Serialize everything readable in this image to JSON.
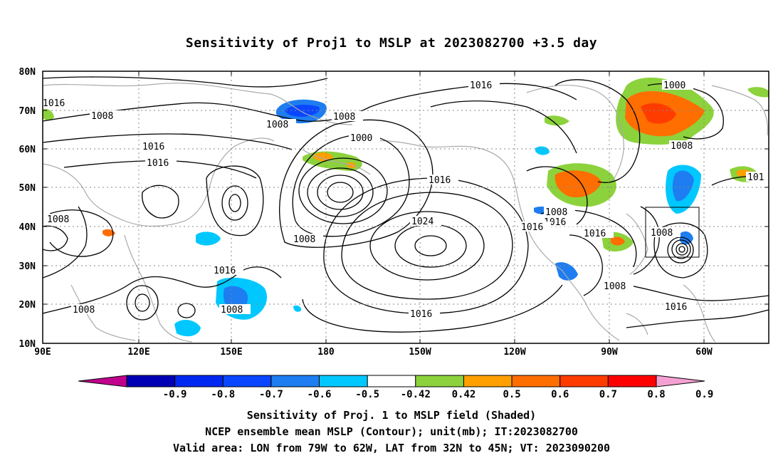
{
  "title": "Sensitivity of Proj1 to MSLP at 2023082700 +3.5 day",
  "lat_labels": [
    "80N",
    "70N",
    "60N",
    "50N",
    "40N",
    "30N",
    "20N",
    "10N"
  ],
  "lon_labels": [
    "90E",
    "120E",
    "150E",
    "180",
    "150W",
    "120W",
    "90W",
    "60W"
  ],
  "contour_labels": [
    "1016",
    "1008",
    "1008",
    "1008",
    "1000",
    "1016",
    "1000",
    "1016",
    "1016",
    "1008",
    "1016",
    "1024",
    "1008",
    "1016",
    "1008",
    "1016",
    "1008",
    "1008",
    "1016",
    "1016",
    "1008",
    "1016",
    "1016",
    "1008",
    "1016",
    "1008",
    "101"
  ],
  "colorbar": {
    "labels": [
      "-0.9",
      "-0.8",
      "-0.7",
      "-0.6",
      "-0.5",
      "-0.42",
      "0.42",
      "0.5",
      "0.6",
      "0.7",
      "0.8",
      "0.9"
    ],
    "colors": [
      "#c0008c",
      "#0000b4",
      "#0028f0",
      "#0a46ff",
      "#1e7df0",
      "#00c8ff",
      "#ffffff",
      "#8cd23c",
      "#ffa000",
      "#ff6e00",
      "#ff3c00",
      "#ff0000",
      "#f5a0d2"
    ]
  },
  "footer": {
    "line1": "Sensitivity of Proj. 1 to MSLP field (Shaded)",
    "line2": "NCEP ensemble mean MSLP (Contour); unit(mb); IT:2023082700",
    "line3": "Valid area: LON from 79W to 62W, LAT from 32N to 45N; VT: 2023090200"
  },
  "map": {
    "lon_range": [
      "90E",
      "40W"
    ],
    "lat_range": [
      "10N",
      "80N"
    ],
    "valid_area": {
      "lon": [
        "79W",
        "62W"
      ],
      "lat": [
        "32N",
        "45N"
      ]
    }
  }
}
